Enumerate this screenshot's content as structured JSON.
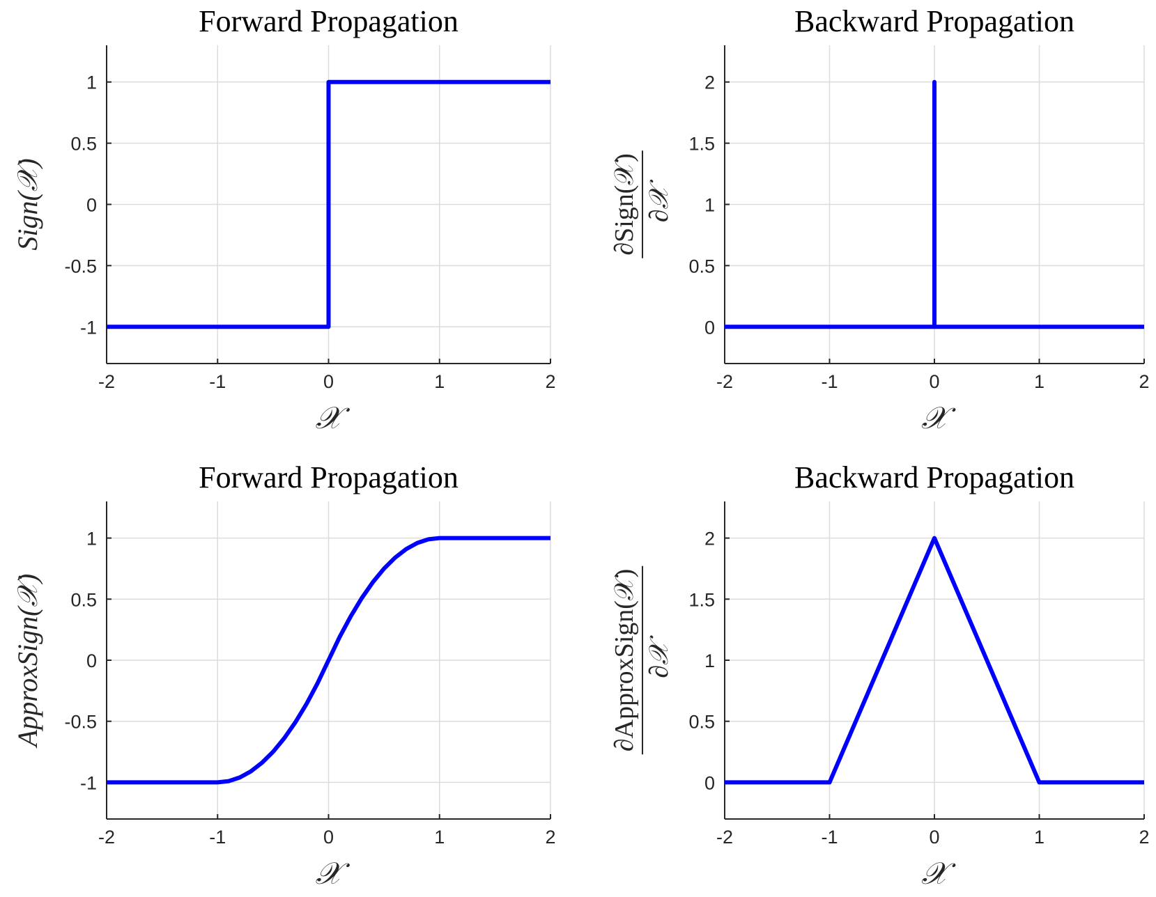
{
  "chart_data": [
    {
      "type": "line",
      "title": "Forward Propagation",
      "xlabel": "𝒳",
      "ylabel": "Sign(𝒳)",
      "ylabel_style": "plain",
      "xlim": [
        -2,
        2
      ],
      "ylim": [
        -1.3,
        1.3
      ],
      "xticks": [
        -2,
        -1,
        0,
        1,
        2
      ],
      "xtick_labels": [
        "-2",
        "-1",
        "0",
        "1",
        "2"
      ],
      "yticks": [
        -1,
        -0.5,
        0,
        0.5,
        1
      ],
      "ytick_labels": [
        "-1",
        "-0.5",
        "0",
        "0.5",
        "1"
      ],
      "grid": true,
      "color": "#0000ff",
      "series": [
        {
          "x": [
            -2,
            0,
            0,
            2
          ],
          "y": [
            -1,
            -1,
            1,
            1
          ]
        }
      ]
    },
    {
      "type": "line",
      "title": "Backward Propagation",
      "xlabel": "𝒳",
      "ylabel_num": "∂Sign(𝒳)",
      "ylabel_den": "∂𝒳",
      "ylabel_style": "fraction",
      "xlim": [
        -2,
        2
      ],
      "ylim": [
        -0.3,
        2.3
      ],
      "xticks": [
        -2,
        -1,
        0,
        1,
        2
      ],
      "xtick_labels": [
        "-2",
        "-1",
        "0",
        "1",
        "2"
      ],
      "yticks": [
        0,
        0.5,
        1,
        1.5,
        2
      ],
      "ytick_labels": [
        "0",
        "0.5",
        "1",
        "1.5",
        "2"
      ],
      "grid": true,
      "color": "#0000ff",
      "series": [
        {
          "x": [
            -2,
            0,
            0,
            0,
            2
          ],
          "y": [
            0,
            0,
            2,
            0,
            0
          ]
        }
      ]
    },
    {
      "type": "line",
      "title": "Forward Propagation",
      "xlabel": "𝒳",
      "ylabel": "ApproxSign(𝒳)",
      "ylabel_style": "plain",
      "xlim": [
        -2,
        2
      ],
      "ylim": [
        -1.3,
        1.3
      ],
      "xticks": [
        -2,
        -1,
        0,
        1,
        2
      ],
      "xtick_labels": [
        "-2",
        "-1",
        "0",
        "1",
        "2"
      ],
      "yticks": [
        -1,
        -0.5,
        0,
        0.5,
        1
      ],
      "ytick_labels": [
        "-1",
        "-0.5",
        "0",
        "0.5",
        "1"
      ],
      "grid": true,
      "color": "#0000ff",
      "series": [
        {
          "x": [
            -2,
            -1,
            -0.9,
            -0.8,
            -0.7,
            -0.6,
            -0.5,
            -0.4,
            -0.3,
            -0.2,
            -0.1,
            0,
            0.1,
            0.2,
            0.3,
            0.4,
            0.5,
            0.6,
            0.7,
            0.8,
            0.9,
            1,
            2
          ],
          "y": [
            -1,
            -1,
            -0.99,
            -0.96,
            -0.91,
            -0.84,
            -0.75,
            -0.64,
            -0.51,
            -0.36,
            -0.19,
            0,
            0.19,
            0.36,
            0.51,
            0.64,
            0.75,
            0.84,
            0.91,
            0.96,
            0.99,
            1,
            1
          ]
        }
      ]
    },
    {
      "type": "line",
      "title": "Backward Propagation",
      "xlabel": "𝒳",
      "ylabel_num": "∂ApproxSign(𝒳)",
      "ylabel_den": "∂𝒳",
      "ylabel_style": "fraction",
      "xlim": [
        -2,
        2
      ],
      "ylim": [
        -0.3,
        2.3
      ],
      "xticks": [
        -2,
        -1,
        0,
        1,
        2
      ],
      "xtick_labels": [
        "-2",
        "-1",
        "0",
        "1",
        "2"
      ],
      "yticks": [
        0,
        0.5,
        1,
        1.5,
        2
      ],
      "ytick_labels": [
        "0",
        "0.5",
        "1",
        "1.5",
        "2"
      ],
      "grid": true,
      "color": "#0000ff",
      "series": [
        {
          "x": [
            -2,
            -1,
            0,
            1,
            2
          ],
          "y": [
            0,
            0,
            2,
            0,
            0
          ]
        }
      ]
    }
  ]
}
